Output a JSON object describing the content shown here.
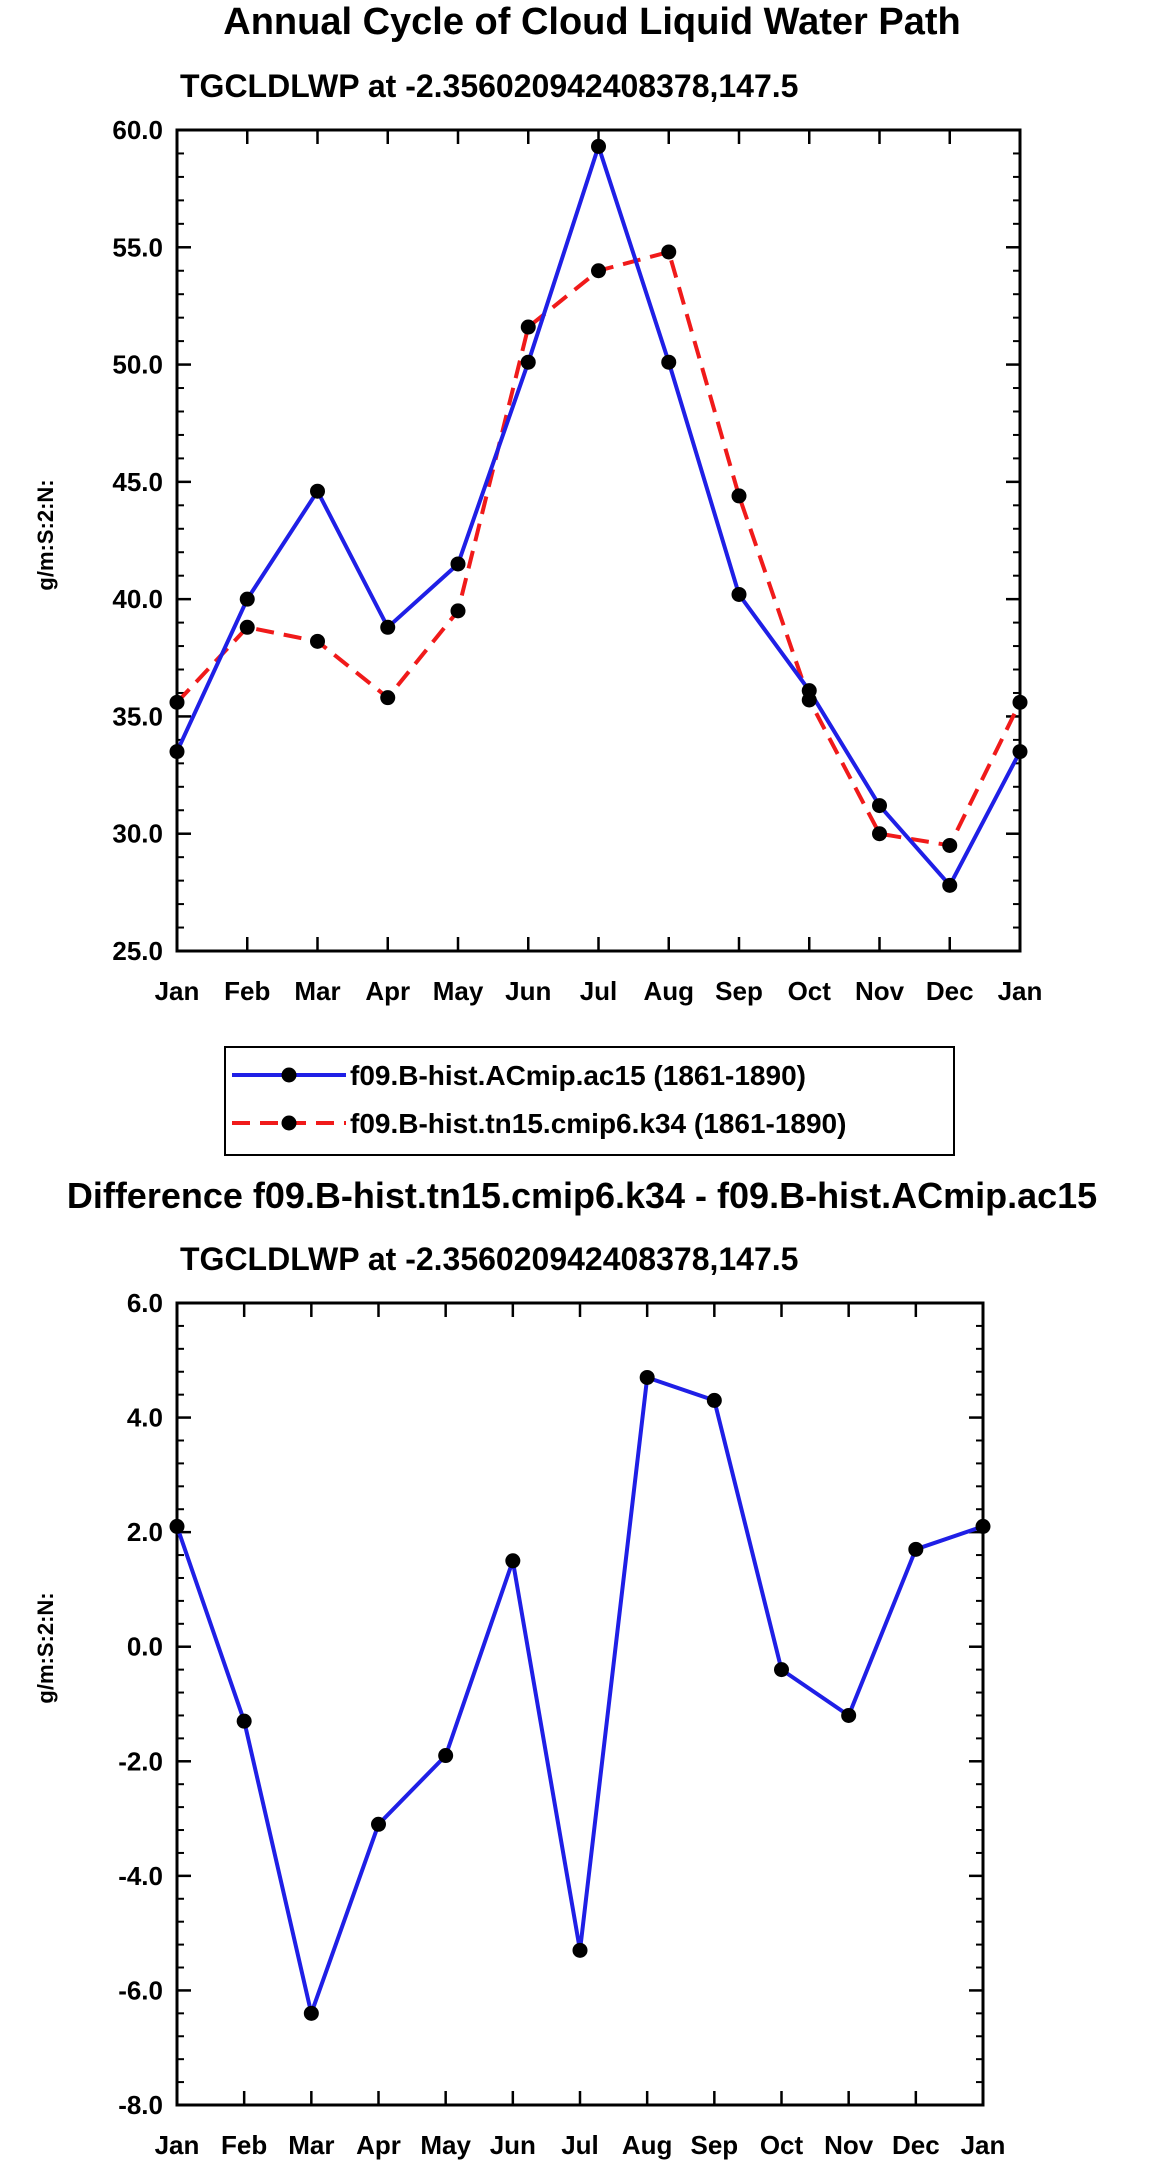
{
  "colors": {
    "series1": "#1f1fe6",
    "series2": "#f01a1a",
    "marker": "#000000",
    "axis": "#000000"
  },
  "chart_data": [
    {
      "type": "line",
      "title": "Annual Cycle of Cloud Liquid Water Path",
      "subtitle": "TGCLDLWP at -2.356020942408378,147.5",
      "xlabel": "",
      "ylabel": "g/m:S:2:N:",
      "categories": [
        "Jan",
        "Feb",
        "Mar",
        "Apr",
        "May",
        "Jun",
        "Jul",
        "Aug",
        "Sep",
        "Oct",
        "Nov",
        "Dec",
        "Jan"
      ],
      "ylim": [
        25,
        60
      ],
      "yticks": [
        25,
        30,
        35,
        40,
        45,
        50,
        55,
        60
      ],
      "ytick_labels": [
        "25.0",
        "30.0",
        "35.0",
        "40.0",
        "45.0",
        "50.0",
        "55.0",
        "60.0"
      ],
      "series": [
        {
          "name": "f09.B-hist.ACmip.ac15 (1861-1890)",
          "style": "solid",
          "values": [
            33.5,
            40.0,
            44.6,
            38.8,
            41.5,
            50.1,
            59.3,
            50.1,
            40.2,
            36.1,
            31.2,
            27.8,
            33.5
          ]
        },
        {
          "name": "f09.B-hist.tn15.cmip6.k34 (1861-1890)",
          "style": "dashed",
          "values": [
            35.6,
            38.8,
            38.2,
            35.8,
            39.5,
            51.6,
            54.0,
            54.8,
            44.4,
            35.7,
            30.0,
            29.5,
            35.6
          ]
        }
      ]
    },
    {
      "type": "line",
      "title": "Difference f09.B-hist.tn15.cmip6.k34 - f09.B-hist.ACmip.ac15",
      "subtitle": "TGCLDLWP at -2.356020942408378,147.5",
      "xlabel": "",
      "ylabel": "g/m:S:2:N:",
      "categories": [
        "Jan",
        "Feb",
        "Mar",
        "Apr",
        "May",
        "Jun",
        "Jul",
        "Aug",
        "Sep",
        "Oct",
        "Nov",
        "Dec",
        "Jan"
      ],
      "ylim": [
        -8,
        6
      ],
      "yticks": [
        -8,
        -6,
        -4,
        -2,
        0,
        2,
        4,
        6
      ],
      "ytick_labels": [
        "-8.0",
        "-6.0",
        "-4.0",
        "-2.0",
        "0.0",
        "2.0",
        "4.0",
        "6.0"
      ],
      "series": [
        {
          "name": "Difference",
          "style": "solid",
          "values": [
            2.1,
            -1.3,
            -6.4,
            -3.1,
            -1.9,
            1.5,
            -5.3,
            4.7,
            4.3,
            -0.4,
            -1.2,
            1.7,
            2.1
          ]
        }
      ]
    }
  ]
}
